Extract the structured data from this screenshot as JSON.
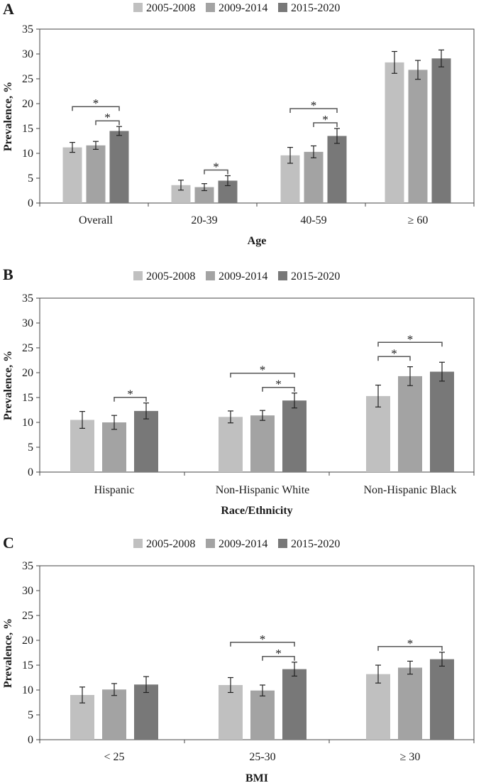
{
  "legend": [
    "2005-2008",
    "2009-2014",
    "2015-2020"
  ],
  "colors": [
    "#c0c0c0",
    "#a3a3a3",
    "#787878"
  ],
  "chart_data": [
    {
      "type": "bar",
      "panel": "A",
      "title": "",
      "xlabel": "Age",
      "ylabel": "Prevalence, %",
      "ylim": [
        0,
        35
      ],
      "yticks": [
        "0",
        "5",
        "10",
        "15",
        "20",
        "25",
        "30",
        "35"
      ],
      "categories": [
        "Overall",
        "20-39",
        "40-59",
        "≥ 60"
      ],
      "series": [
        {
          "name": "2005-2008",
          "values": [
            11.2,
            3.6,
            9.6,
            28.3
          ],
          "err": [
            1.0,
            1.0,
            1.6,
            2.2
          ]
        },
        {
          "name": "2009-2014",
          "values": [
            11.6,
            3.2,
            10.3,
            26.8
          ],
          "err": [
            0.8,
            0.7,
            1.2,
            1.9
          ]
        },
        {
          "name": "2015-2020",
          "values": [
            14.5,
            4.5,
            13.5,
            29.1
          ],
          "err": [
            0.9,
            1.0,
            1.5,
            1.7
          ]
        }
      ],
      "significance": [
        {
          "category": 0,
          "from": 0,
          "to": 2,
          "label": "*"
        },
        {
          "category": 0,
          "from": 1,
          "to": 2,
          "label": "*"
        },
        {
          "category": 1,
          "from": 1,
          "to": 2,
          "label": "*"
        },
        {
          "category": 2,
          "from": 0,
          "to": 2,
          "label": "*"
        },
        {
          "category": 2,
          "from": 1,
          "to": 2,
          "label": "*"
        }
      ]
    },
    {
      "type": "bar",
      "panel": "B",
      "title": "",
      "xlabel": "Race/Ethnicity",
      "ylabel": "Prevalence, %",
      "ylim": [
        0,
        35
      ],
      "yticks": [
        "0",
        "5",
        "10",
        "15",
        "20",
        "25",
        "30",
        "35"
      ],
      "categories": [
        "Hispanic",
        "Non-Hispanic White",
        "Non-Hispanic Black"
      ],
      "series": [
        {
          "name": "2005-2008",
          "values": [
            10.5,
            11.1,
            15.3
          ],
          "err": [
            1.7,
            1.2,
            2.2
          ]
        },
        {
          "name": "2009-2014",
          "values": [
            10.0,
            11.4,
            19.3
          ],
          "err": [
            1.4,
            1.0,
            1.9
          ]
        },
        {
          "name": "2015-2020",
          "values": [
            12.3,
            14.4,
            20.2
          ],
          "err": [
            1.6,
            1.5,
            1.9
          ]
        }
      ],
      "significance": [
        {
          "category": 0,
          "from": 1,
          "to": 2,
          "label": "*"
        },
        {
          "category": 1,
          "from": 0,
          "to": 2,
          "label": "*"
        },
        {
          "category": 1,
          "from": 1,
          "to": 2,
          "label": "*"
        },
        {
          "category": 2,
          "from": 0,
          "to": 2,
          "label": "*"
        },
        {
          "category": 2,
          "from": 0,
          "to": 1,
          "label": "*"
        }
      ]
    },
    {
      "type": "bar",
      "panel": "C",
      "title": "",
      "xlabel": "BMI",
      "ylabel": "Prevalence, %",
      "ylim": [
        0,
        35
      ],
      "yticks": [
        "0",
        "5",
        "10",
        "15",
        "20",
        "25",
        "30",
        "35"
      ],
      "categories": [
        "< 25",
        "25-30",
        "≥ 30"
      ],
      "series": [
        {
          "name": "2005-2008",
          "values": [
            9.0,
            11.0,
            13.2
          ],
          "err": [
            1.6,
            1.5,
            1.8
          ]
        },
        {
          "name": "2009-2014",
          "values": [
            10.1,
            9.9,
            14.5
          ],
          "err": [
            1.2,
            1.1,
            1.3
          ]
        },
        {
          "name": "2015-2020",
          "values": [
            11.1,
            14.2,
            16.2
          ],
          "err": [
            1.6,
            1.4,
            1.4
          ]
        }
      ],
      "significance": [
        {
          "category": 1,
          "from": 0,
          "to": 2,
          "label": "*"
        },
        {
          "category": 1,
          "from": 1,
          "to": 2,
          "label": "*"
        },
        {
          "category": 2,
          "from": 0,
          "to": 2,
          "label": "*"
        }
      ]
    }
  ]
}
